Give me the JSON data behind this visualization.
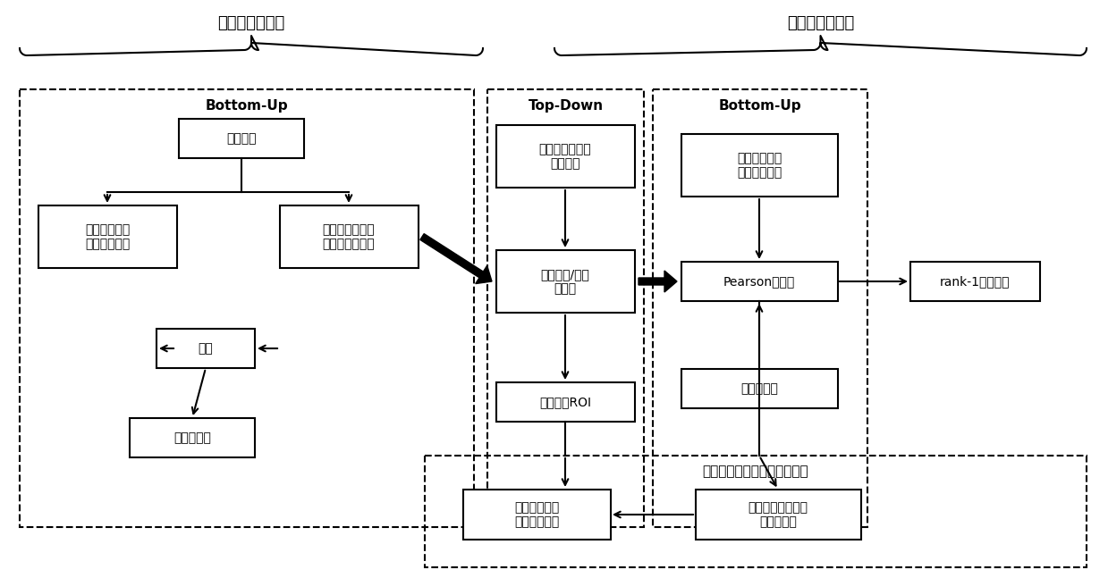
{
  "bg_color": "#ffffff",
  "title_left": "交通标志牌检测",
  "title_right": "交通标志牌识别",
  "label_bottom_up_left": "Bottom-Up",
  "label_top_down": "Top-Down",
  "label_bottom_up_right": "Bottom-Up",
  "label_validation": "具有反向视觉计算的目标验证",
  "box_yuan_shi": "原始图像",
  "box_ju_lei_xie": "基于聚类的协\n同注意力模型",
  "box_ju_lei_dan": "基于聚类的单幅\n图像注意力模型",
  "box_rong_he": "融合",
  "box_xie_zhu": "协同显著图",
  "box_hou_xuan": "协同显著的连通\n候选标记",
  "box_yuan_du": "圆度检测/三角\n形检测",
  "box_ding_wei": "定位图像ROI",
  "box_qian_xiang": "前向通道两级\n生物启发变换",
  "box_pearson": "Pearson相关性",
  "box_mu_ban": "模板数据库",
  "box_rank1": "rank-1识别结果",
  "box_ji_zhong": "基于击中图的\n目标区域定位",
  "box_liang_ji": "两级视觉记忆的反\n向投射通道"
}
